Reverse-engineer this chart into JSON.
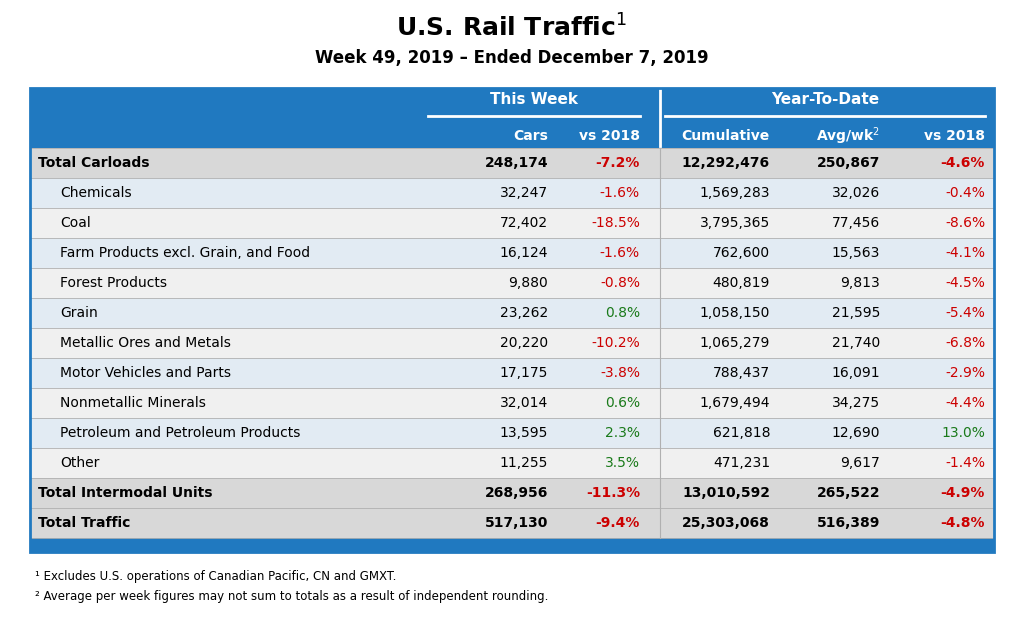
{
  "title": "U.S. Rail Traffic$^1$",
  "subtitle": "Week 49, 2019 – Ended December 7, 2019",
  "header_group1": "This Week",
  "header_group2": "Year-To-Date",
  "rows": [
    {
      "label": "Total Carloads",
      "bold": true,
      "indent": false,
      "cars": "248,174",
      "vs2018_tw": "-7.2%",
      "cumulative": "12,292,476",
      "avgwk": "250,867",
      "vs2018_ytd": "-4.6%",
      "vs2018_tw_color": "red",
      "vs2018_ytd_color": "red"
    },
    {
      "label": "Chemicals",
      "bold": false,
      "indent": true,
      "cars": "32,247",
      "vs2018_tw": "-1.6%",
      "cumulative": "1,569,283",
      "avgwk": "32,026",
      "vs2018_ytd": "-0.4%",
      "vs2018_tw_color": "red",
      "vs2018_ytd_color": "red"
    },
    {
      "label": "Coal",
      "bold": false,
      "indent": true,
      "cars": "72,402",
      "vs2018_tw": "-18.5%",
      "cumulative": "3,795,365",
      "avgwk": "77,456",
      "vs2018_ytd": "-8.6%",
      "vs2018_tw_color": "red",
      "vs2018_ytd_color": "red"
    },
    {
      "label": "Farm Products excl. Grain, and Food",
      "bold": false,
      "indent": true,
      "cars": "16,124",
      "vs2018_tw": "-1.6%",
      "cumulative": "762,600",
      "avgwk": "15,563",
      "vs2018_ytd": "-4.1%",
      "vs2018_tw_color": "red",
      "vs2018_ytd_color": "red"
    },
    {
      "label": "Forest Products",
      "bold": false,
      "indent": true,
      "cars": "9,880",
      "vs2018_tw": "-0.8%",
      "cumulative": "480,819",
      "avgwk": "9,813",
      "vs2018_ytd": "-4.5%",
      "vs2018_tw_color": "red",
      "vs2018_ytd_color": "red"
    },
    {
      "label": "Grain",
      "bold": false,
      "indent": true,
      "cars": "23,262",
      "vs2018_tw": "0.8%",
      "cumulative": "1,058,150",
      "avgwk": "21,595",
      "vs2018_ytd": "-5.4%",
      "vs2018_tw_color": "green",
      "vs2018_ytd_color": "red"
    },
    {
      "label": "Metallic Ores and Metals",
      "bold": false,
      "indent": true,
      "cars": "20,220",
      "vs2018_tw": "-10.2%",
      "cumulative": "1,065,279",
      "avgwk": "21,740",
      "vs2018_ytd": "-6.8%",
      "vs2018_tw_color": "red",
      "vs2018_ytd_color": "red"
    },
    {
      "label": "Motor Vehicles and Parts",
      "bold": false,
      "indent": true,
      "cars": "17,175",
      "vs2018_tw": "-3.8%",
      "cumulative": "788,437",
      "avgwk": "16,091",
      "vs2018_ytd": "-2.9%",
      "vs2018_tw_color": "red",
      "vs2018_ytd_color": "red"
    },
    {
      "label": "Nonmetallic Minerals",
      "bold": false,
      "indent": true,
      "cars": "32,014",
      "vs2018_tw": "0.6%",
      "cumulative": "1,679,494",
      "avgwk": "34,275",
      "vs2018_ytd": "-4.4%",
      "vs2018_tw_color": "green",
      "vs2018_ytd_color": "red"
    },
    {
      "label": "Petroleum and Petroleum Products",
      "bold": false,
      "indent": true,
      "cars": "13,595",
      "vs2018_tw": "2.3%",
      "cumulative": "621,818",
      "avgwk": "12,690",
      "vs2018_ytd": "13.0%",
      "vs2018_tw_color": "green",
      "vs2018_ytd_color": "green"
    },
    {
      "label": "Other",
      "bold": false,
      "indent": true,
      "cars": "11,255",
      "vs2018_tw": "3.5%",
      "cumulative": "471,231",
      "avgwk": "9,617",
      "vs2018_ytd": "-1.4%",
      "vs2018_tw_color": "green",
      "vs2018_ytd_color": "red"
    },
    {
      "label": "Total Intermodal Units",
      "bold": true,
      "indent": false,
      "cars": "268,956",
      "vs2018_tw": "-11.3%",
      "cumulative": "13,010,592",
      "avgwk": "265,522",
      "vs2018_ytd": "-4.9%",
      "vs2018_tw_color": "red",
      "vs2018_ytd_color": "red"
    },
    {
      "label": "Total Traffic",
      "bold": true,
      "indent": false,
      "cars": "517,130",
      "vs2018_tw": "-9.4%",
      "cumulative": "25,303,068",
      "avgwk": "516,389",
      "vs2018_ytd": "-4.8%",
      "vs2018_tw_color": "red",
      "vs2018_ytd_color": "red"
    }
  ],
  "footnotes": [
    "¹ Excludes U.S. operations of Canadian Pacific, CN and GMXT.",
    "² Average per week figures may not sum to totals as a result of independent rounding."
  ],
  "header_bg": "#2079C0",
  "alt_row_bg": "#E2EBF3",
  "white_row_bg": "#F0F0F0",
  "bold_row_bg": "#D8D8D8",
  "red_color": "#CC0000",
  "green_color": "#1A7A1A",
  "text_color": "#000000",
  "border_color": "#2079C0"
}
